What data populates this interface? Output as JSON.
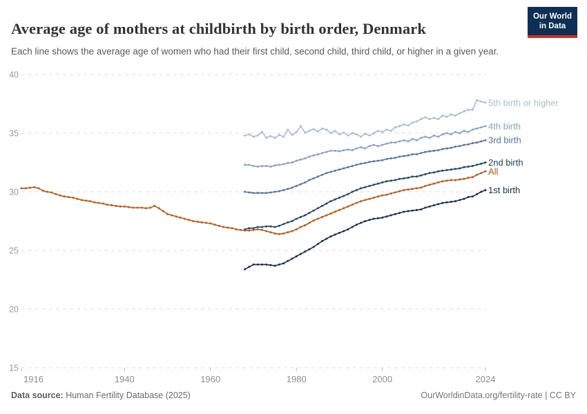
{
  "header": {
    "title": "Average age of mothers at childbirth by birth order, Denmark",
    "subtitle": "Each line shows the average age of women who had their first child, second child, third child, or higher in a given year.",
    "logo": {
      "line1": "Our World",
      "line2": "in Data",
      "bg_color": "#0d2e55",
      "accent_color": "#d42b21"
    }
  },
  "footer": {
    "source_label": "Data source:",
    "source_value": " Human Fertility Database (2025)",
    "credit": "OurWorldinData.org/fertility-rate | CC BY"
  },
  "chart_data": {
    "type": "line",
    "title": "Average age of mothers at childbirth by birth order, Denmark",
    "xlabel": "",
    "ylabel": "",
    "xlim": [
      1916,
      2024
    ],
    "ylim": [
      15,
      40
    ],
    "x_ticks": [
      1916,
      1940,
      1960,
      1980,
      2000,
      2024
    ],
    "y_ticks": [
      40,
      35,
      30,
      25,
      20,
      15
    ],
    "grid": "horizontal-dashed",
    "legend_position": "right-of-line-ends",
    "marker": "dot",
    "grid_color": "#dcdcdc",
    "tick_label_color": "#999999",
    "series": [
      {
        "name": "5th birth or higher",
        "color": "#a6bdd8",
        "start_year": 1968,
        "values": [
          34.8,
          34.9,
          34.7,
          34.8,
          35.1,
          34.6,
          34.75,
          34.6,
          34.85,
          34.7,
          35.3,
          34.85,
          35.1,
          35.6,
          35.05,
          35.2,
          35.35,
          35.15,
          35.4,
          35.3,
          35.0,
          35.2,
          34.9,
          35.05,
          34.8,
          35.0,
          34.9,
          34.7,
          34.95,
          34.8,
          35.0,
          35.2,
          35.1,
          35.3,
          35.2,
          35.5,
          35.6,
          35.75,
          35.65,
          35.9,
          36.0,
          36.2,
          36.35,
          36.2,
          36.3,
          36.2,
          36.5,
          36.4,
          36.6,
          36.5,
          36.7,
          36.85,
          37.0,
          37.0,
          37.8,
          37.7,
          37.6
        ]
      },
      {
        "name": "4th birth",
        "color": "#85a1c1",
        "start_year": 1968,
        "values": [
          32.3,
          32.3,
          32.2,
          32.15,
          32.2,
          32.2,
          32.15,
          32.25,
          32.3,
          32.35,
          32.45,
          32.5,
          32.65,
          32.75,
          32.85,
          33.0,
          33.1,
          33.2,
          33.3,
          33.4,
          33.5,
          33.5,
          33.45,
          33.55,
          33.6,
          33.55,
          33.7,
          33.8,
          33.7,
          33.9,
          34.0,
          33.9,
          34.0,
          34.1,
          34.2,
          34.2,
          34.3,
          34.4,
          34.3,
          34.5,
          34.4,
          34.6,
          34.7,
          34.6,
          34.8,
          34.7,
          34.9,
          35.0,
          34.9,
          35.1,
          35.0,
          35.2,
          35.1,
          35.3,
          35.4,
          35.5,
          35.6
        ]
      },
      {
        "name": "3rd birth",
        "color": "#55759e",
        "start_year": 1968,
        "values": [
          30.0,
          29.95,
          29.9,
          29.9,
          29.9,
          29.9,
          29.95,
          30.0,
          30.05,
          30.15,
          30.25,
          30.35,
          30.5,
          30.65,
          30.8,
          31.0,
          31.15,
          31.3,
          31.45,
          31.6,
          31.7,
          31.8,
          31.9,
          32.0,
          32.1,
          32.2,
          32.3,
          32.4,
          32.45,
          32.55,
          32.6,
          32.65,
          32.7,
          32.8,
          32.85,
          32.9,
          33.0,
          33.05,
          33.1,
          33.2,
          33.2,
          33.3,
          33.4,
          33.45,
          33.5,
          33.55,
          33.65,
          33.7,
          33.75,
          33.85,
          33.9,
          34.0,
          34.05,
          34.15,
          34.2,
          34.3,
          34.4
        ]
      },
      {
        "name": "2nd birth",
        "color": "#1f4566",
        "start_year": 1968,
        "values": [
          26.8,
          26.9,
          26.9,
          27.0,
          27.0,
          27.05,
          27.05,
          27.0,
          27.1,
          27.25,
          27.4,
          27.5,
          27.7,
          27.85,
          28.0,
          28.2,
          28.4,
          28.6,
          28.8,
          29.0,
          29.2,
          29.35,
          29.5,
          29.65,
          29.8,
          30.0,
          30.15,
          30.3,
          30.4,
          30.5,
          30.6,
          30.7,
          30.8,
          30.9,
          30.95,
          31.0,
          31.1,
          31.15,
          31.2,
          31.3,
          31.3,
          31.4,
          31.5,
          31.6,
          31.65,
          31.75,
          31.8,
          31.85,
          31.9,
          31.95,
          32.0,
          32.1,
          32.15,
          32.2,
          32.3,
          32.4,
          32.5
        ]
      },
      {
        "name": "All",
        "color": "#bd5a17",
        "start_year": 1916,
        "values": [
          30.3,
          30.3,
          30.35,
          30.4,
          30.3,
          30.1,
          30.0,
          29.95,
          29.8,
          29.7,
          29.6,
          29.55,
          29.5,
          29.4,
          29.3,
          29.25,
          29.2,
          29.1,
          29.05,
          29.0,
          28.9,
          28.85,
          28.8,
          28.75,
          28.75,
          28.7,
          28.65,
          28.65,
          28.65,
          28.6,
          28.65,
          28.8,
          28.6,
          28.35,
          28.1,
          28.0,
          27.9,
          27.8,
          27.7,
          27.6,
          27.5,
          27.45,
          27.4,
          27.35,
          27.3,
          27.2,
          27.1,
          27.0,
          26.95,
          26.9,
          26.8,
          26.75,
          26.7,
          26.7,
          26.75,
          26.8,
          26.75,
          26.65,
          26.55,
          26.45,
          26.4,
          26.45,
          26.55,
          26.65,
          26.8,
          27.0,
          27.15,
          27.35,
          27.55,
          27.7,
          27.85,
          28.0,
          28.15,
          28.3,
          28.45,
          28.6,
          28.75,
          28.9,
          29.05,
          29.2,
          29.3,
          29.4,
          29.5,
          29.6,
          29.7,
          29.75,
          29.85,
          29.95,
          30.05,
          30.15,
          30.2,
          30.25,
          30.3,
          30.35,
          30.5,
          30.6,
          30.7,
          30.8,
          30.9,
          30.95,
          31.0,
          31.0,
          31.05,
          31.1,
          31.2,
          31.25,
          31.45,
          31.6,
          31.75
        ]
      },
      {
        "name": "1st birth",
        "color": "#142f52",
        "start_year": 1968,
        "values": [
          23.4,
          23.6,
          23.8,
          23.8,
          23.8,
          23.8,
          23.75,
          23.7,
          23.8,
          23.9,
          24.1,
          24.3,
          24.5,
          24.7,
          24.9,
          25.1,
          25.3,
          25.55,
          25.8,
          26.0,
          26.2,
          26.35,
          26.5,
          26.65,
          26.8,
          27.0,
          27.2,
          27.35,
          27.5,
          27.6,
          27.7,
          27.75,
          27.8,
          27.9,
          28.0,
          28.1,
          28.2,
          28.3,
          28.35,
          28.4,
          28.45,
          28.5,
          28.65,
          28.75,
          28.85,
          28.95,
          29.05,
          29.1,
          29.15,
          29.2,
          29.3,
          29.4,
          29.55,
          29.6,
          29.8,
          30.0,
          30.15
        ]
      }
    ]
  }
}
